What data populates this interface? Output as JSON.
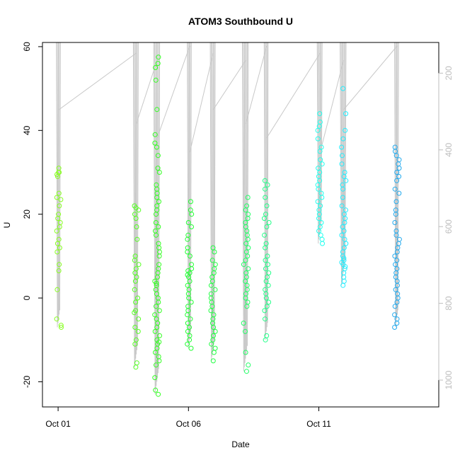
{
  "chart_data": {
    "type": "scatter",
    "title": "ATOM3 Southbound U",
    "xlabel": "Date",
    "ylabel": "U",
    "x_ticks": [
      "Oct 01",
      "Oct 06",
      "Oct 11"
    ],
    "x_tick_days": [
      1,
      6,
      11
    ],
    "xlim_days": [
      0.4,
      15.6
    ],
    "ylim": [
      -26,
      61
    ],
    "y_ticks": [
      -20,
      0,
      20,
      40,
      60
    ],
    "right_axis_ticks": [
      200,
      400,
      600,
      800,
      1000
    ],
    "right_axis_range": [
      1070,
      120
    ],
    "right_axis_color": "#bdbdbd",
    "profile_line_color": "#c8c8c8",
    "grid": false,
    "clusters": [
      {
        "day": 1.03,
        "color": "#88ff22",
        "u_min": -7,
        "u_max": 31,
        "values": [
          31,
          30,
          29.5,
          29,
          30,
          25,
          24,
          23.5,
          22,
          20,
          19,
          18,
          17,
          16,
          14,
          13,
          12,
          11,
          8,
          6.5,
          2,
          -5,
          -6.5,
          -7
        ]
      },
      {
        "day": 4.0,
        "color": "#55ff22",
        "u_min": -16.5,
        "u_max": 22,
        "values": [
          22,
          21.5,
          21,
          20,
          19,
          17,
          14,
          10,
          9,
          8,
          7,
          6,
          5,
          4,
          2,
          0,
          -1,
          -3,
          -3.5,
          -5,
          -7,
          -8,
          -10,
          -11,
          -15.5,
          -16.5
        ]
      },
      {
        "day": 4.8,
        "color": "#33ff22",
        "u_min": -23,
        "u_max": 57.5,
        "values": [
          57.5,
          56,
          55,
          52,
          45,
          39,
          37,
          36,
          34,
          31,
          30,
          27,
          26,
          25,
          24,
          23,
          22,
          21,
          20,
          18,
          17,
          16,
          15,
          13,
          12,
          11,
          10,
          8,
          7,
          6,
          5,
          4,
          3.5,
          3,
          2,
          1,
          0,
          -1,
          -2,
          -3,
          -4,
          -5,
          -6,
          -7,
          -8,
          -9,
          -10,
          -10.5,
          -11,
          -12,
          -13,
          -14,
          -15,
          -16,
          -19,
          -22,
          -23
        ]
      },
      {
        "day": 6.05,
        "color": "#22ff33",
        "u_min": -12,
        "u_max": 23,
        "values": [
          23,
          21,
          20,
          18,
          17,
          15,
          14,
          12,
          11,
          10,
          8,
          7,
          6.5,
          6,
          5.5,
          5,
          4,
          3,
          2,
          1,
          0,
          -1,
          -2,
          -3,
          -4,
          -5,
          -6,
          -7,
          -8,
          -9,
          -10,
          -11,
          -12
        ]
      },
      {
        "day": 6.95,
        "color": "#22ff44",
        "u_min": -15,
        "u_max": 12,
        "values": [
          12,
          11,
          9,
          8,
          7,
          6,
          5,
          4,
          3,
          2,
          1,
          0,
          -1,
          -2,
          -3,
          -4,
          -5,
          -6,
          -7,
          -8,
          -9,
          -10,
          -11,
          -12,
          -13,
          -15
        ]
      },
      {
        "day": 8.2,
        "color": "#22ff66",
        "u_min": -17.5,
        "u_max": 24,
        "values": [
          24,
          22,
          21,
          20,
          19,
          18,
          17,
          16,
          15,
          14,
          13,
          12,
          11,
          10,
          9,
          8,
          7,
          6,
          5,
          4,
          3,
          2,
          1,
          0,
          -1,
          -2,
          -6,
          -8,
          -13,
          -16,
          -17.5
        ]
      },
      {
        "day": 9.0,
        "color": "#22ff88",
        "u_min": -10,
        "u_max": 28,
        "values": [
          28,
          27,
          26,
          24,
          22,
          20,
          19,
          18,
          17,
          15,
          13,
          12,
          10,
          9,
          8,
          7,
          6,
          5,
          4,
          3,
          2,
          1,
          0,
          -1,
          -2,
          -3,
          -5,
          -9,
          -10
        ]
      },
      {
        "day": 11.05,
        "color": "#22ffee",
        "u_min": 13,
        "u_max": 44,
        "values": [
          44,
          42,
          41,
          40,
          38,
          36,
          35,
          33,
          32,
          31,
          30,
          29,
          28,
          27,
          26,
          25,
          24,
          23,
          22,
          21,
          20,
          19,
          18,
          17,
          16,
          15,
          14,
          13
        ]
      },
      {
        "day": 11.95,
        "color": "#22eeff",
        "u_min": 3,
        "u_max": 50,
        "values": [
          50,
          44,
          40,
          38,
          36,
          34,
          32,
          30,
          29,
          28,
          27,
          26,
          24,
          22,
          21,
          20,
          19,
          18,
          17,
          16,
          15,
          14,
          13,
          12,
          11,
          10,
          9.5,
          9,
          8.5,
          8,
          7.5,
          7,
          6,
          5,
          4,
          3
        ]
      },
      {
        "day": 14.0,
        "color": "#22aaee",
        "u_min": -7,
        "u_max": 36,
        "values": [
          36,
          35,
          34,
          33,
          32,
          31,
          30,
          29,
          28,
          26,
          25,
          23,
          21,
          20,
          18,
          16,
          15,
          14,
          13,
          12,
          11,
          10,
          9,
          8,
          7,
          6,
          5,
          4,
          3,
          2,
          1,
          0,
          -1,
          -2,
          -4,
          -5,
          -6,
          -7
        ]
      }
    ]
  }
}
